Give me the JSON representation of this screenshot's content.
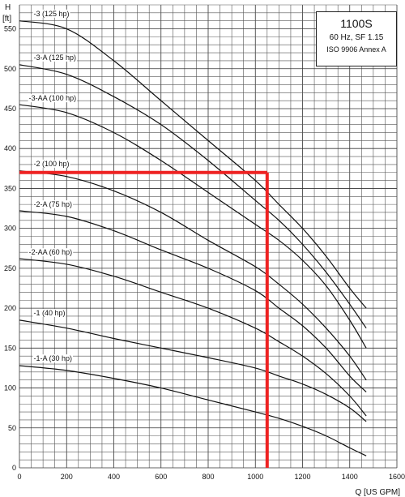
{
  "legend": {
    "model": "1100S",
    "spec": "60 Hz, SF 1.15",
    "standard": "ISO 9906 Annex A"
  },
  "colors": {
    "curves": "#111111",
    "grid": "#444444",
    "operating_point": "#ee2222"
  },
  "chart_data": {
    "type": "line",
    "ylabel_unit": "H",
    "ylabel_bracket": "[ft]",
    "xlabel": "Q [US GPM]",
    "xlim": [
      0,
      1600
    ],
    "ylim": [
      0,
      580
    ],
    "xticks": [
      0,
      200,
      400,
      600,
      800,
      1000,
      1200,
      1400,
      1600
    ],
    "yticks": [
      0,
      50,
      100,
      150,
      200,
      250,
      300,
      350,
      400,
      450,
      500,
      550
    ],
    "grid": true,
    "series": [
      {
        "name": "-3 (125 hp)",
        "x": [
          0,
          200,
          400,
          600,
          800,
          1000,
          1100,
          1200,
          1300,
          1400,
          1470
        ],
        "y": [
          560,
          550,
          510,
          460,
          410,
          360,
          330,
          300,
          265,
          225,
          200
        ]
      },
      {
        "name": "-3-A (125 hp)",
        "x": [
          0,
          200,
          400,
          600,
          800,
          1000,
          1100,
          1200,
          1300,
          1400,
          1470
        ],
        "y": [
          505,
          493,
          465,
          430,
          385,
          335,
          310,
          280,
          245,
          205,
          175
        ]
      },
      {
        "name": "-3-AA (100 hp)",
        "x": [
          0,
          200,
          400,
          600,
          800,
          1000,
          1100,
          1200,
          1300,
          1400,
          1470
        ],
        "y": [
          455,
          445,
          420,
          385,
          345,
          305,
          285,
          260,
          228,
          185,
          150
        ]
      },
      {
        "name": "-2 (100 hp)",
        "x": [
          0,
          200,
          400,
          600,
          800,
          1000,
          1100,
          1200,
          1300,
          1400,
          1470
        ],
        "y": [
          372,
          365,
          347,
          320,
          285,
          252,
          230,
          205,
          175,
          140,
          110
        ]
      },
      {
        "name": "-2-A (75 hp)",
        "x": [
          0,
          200,
          400,
          600,
          800,
          1000,
          1100,
          1200,
          1300,
          1400,
          1470
        ],
        "y": [
          322,
          315,
          297,
          273,
          250,
          222,
          200,
          178,
          150,
          115,
          95
        ]
      },
      {
        "name": "-2-AA (60 hp)",
        "x": [
          0,
          200,
          400,
          600,
          800,
          1000,
          1100,
          1200,
          1300,
          1400,
          1470
        ],
        "y": [
          262,
          255,
          240,
          220,
          200,
          175,
          158,
          140,
          118,
          90,
          65
        ]
      },
      {
        "name": "-1 (40 hp)",
        "x": [
          0,
          200,
          400,
          600,
          800,
          1000,
          1100,
          1200,
          1300,
          1400,
          1470
        ],
        "y": [
          185,
          175,
          162,
          150,
          138,
          125,
          115,
          105,
          92,
          75,
          58
        ]
      },
      {
        "name": "-1-A (30 hp)",
        "x": [
          0,
          200,
          400,
          600,
          800,
          1000,
          1100,
          1200,
          1300,
          1400,
          1470
        ],
        "y": [
          128,
          122,
          112,
          100,
          85,
          70,
          62,
          52,
          40,
          25,
          15
        ]
      }
    ],
    "curve_labels": [
      {
        "text": "-3 (125 hp)",
        "x": 60,
        "y": 566
      },
      {
        "text": "-3-A (125 hp)",
        "x": 60,
        "y": 511
      },
      {
        "text": "-3-AA (100 hp)",
        "x": 40,
        "y": 460
      },
      {
        "text": "-2 (100 hp)",
        "x": 60,
        "y": 378
      },
      {
        "text": "-2-A (75 hp)",
        "x": 60,
        "y": 327
      },
      {
        "text": "-2-AA (60 hp)",
        "x": 40,
        "y": 267
      },
      {
        "text": "-1 (40 hp)",
        "x": 60,
        "y": 191
      },
      {
        "text": "-1-A (30 hp)",
        "x": 60,
        "y": 134
      }
    ],
    "operating_point": {
      "x": 1050,
      "y": 370
    }
  }
}
